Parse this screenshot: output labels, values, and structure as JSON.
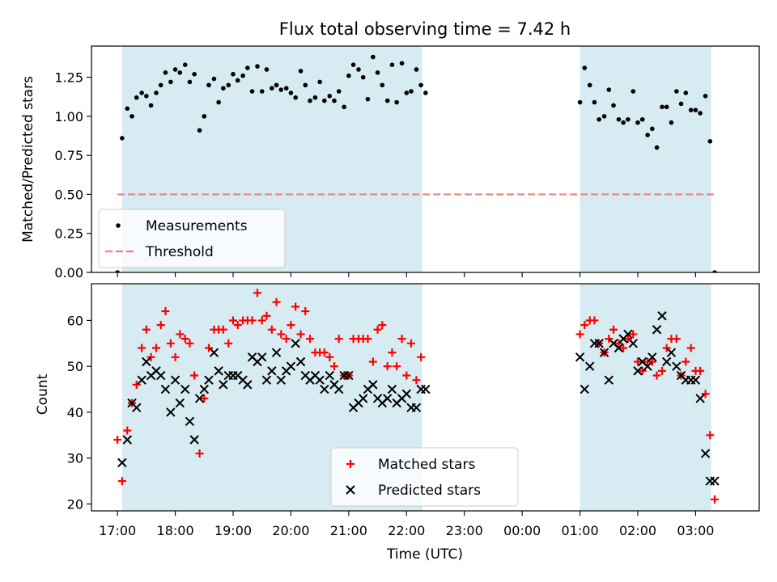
{
  "chart_data": [
    {
      "type": "scatter",
      "title": "Flux total observing time = 7.42 h",
      "ylabel": "Matched/Predicted stars",
      "xlabel": "",
      "ylim": [
        0,
        1.45
      ],
      "yticks": [
        "0.00",
        "0.25",
        "0.50",
        "0.75",
        "1.00",
        "1.25"
      ],
      "ytick_values": [
        0,
        0.25,
        0.5,
        0.75,
        1.0,
        1.25
      ],
      "legend_position": "lower-left",
      "shaded_periods_hours": [
        [
          17.08,
          22.27
        ],
        [
          25.0,
          27.27
        ]
      ],
      "series": [
        {
          "name": "Measurements",
          "color": "#000000",
          "marker": "dot",
          "x_hours": [
            17.0,
            17.08,
            17.17,
            17.25,
            17.33,
            17.42,
            17.5,
            17.58,
            17.67,
            17.75,
            17.83,
            17.92,
            18.0,
            18.08,
            18.17,
            18.25,
            18.33,
            18.42,
            18.5,
            18.58,
            18.67,
            18.75,
            18.83,
            18.92,
            19.0,
            19.08,
            19.17,
            19.25,
            19.33,
            19.42,
            19.5,
            19.58,
            19.67,
            19.75,
            19.83,
            19.92,
            20.0,
            20.08,
            20.17,
            20.25,
            20.33,
            20.42,
            20.5,
            20.58,
            20.67,
            20.75,
            20.83,
            20.92,
            21.0,
            21.08,
            21.17,
            21.25,
            21.33,
            21.42,
            21.5,
            21.58,
            21.67,
            21.75,
            21.83,
            21.92,
            22.0,
            22.08,
            22.17,
            22.25,
            22.33,
            25.0,
            25.08,
            25.17,
            25.25,
            25.33,
            25.42,
            25.5,
            25.58,
            25.67,
            25.75,
            25.83,
            25.92,
            26.0,
            26.08,
            26.17,
            26.25,
            26.33,
            26.42,
            26.5,
            26.58,
            26.67,
            26.75,
            26.83,
            26.92,
            27.0,
            27.08,
            27.17,
            27.25,
            27.33
          ],
          "y": [
            0.0,
            0.86,
            1.05,
            1.0,
            1.12,
            1.15,
            1.13,
            1.07,
            1.15,
            1.2,
            1.28,
            1.22,
            1.3,
            1.28,
            1.33,
            1.22,
            1.27,
            0.91,
            1.0,
            1.2,
            1.24,
            1.09,
            1.18,
            1.2,
            1.27,
            1.23,
            1.26,
            1.31,
            1.16,
            1.32,
            1.16,
            1.3,
            1.18,
            1.2,
            1.17,
            1.18,
            1.15,
            1.12,
            1.29,
            1.2,
            1.1,
            1.12,
            1.22,
            1.1,
            1.13,
            1.1,
            1.16,
            1.06,
            1.26,
            1.33,
            1.3,
            1.25,
            1.11,
            1.38,
            1.28,
            1.2,
            1.1,
            1.33,
            1.09,
            1.34,
            1.15,
            1.16,
            1.3,
            1.2,
            1.15,
            1.09,
            1.31,
            1.2,
            1.09,
            0.98,
            1.0,
            1.17,
            1.07,
            0.98,
            0.96,
            0.98,
            1.16,
            0.96,
            0.98,
            0.88,
            0.92,
            0.8,
            1.06,
            1.06,
            0.96,
            1.16,
            1.08,
            1.15,
            1.04,
            1.04,
            1.02,
            1.13,
            0.84,
            0.0
          ]
        },
        {
          "name": "Threshold",
          "color": "#f08080",
          "style": "dashed",
          "x_hours": [
            17.0,
            27.35
          ],
          "y": [
            0.5,
            0.5
          ]
        }
      ]
    },
    {
      "type": "scatter",
      "title": "",
      "ylabel": "Count",
      "xlabel": "Time (UTC)",
      "ylim": [
        18.5,
        68
      ],
      "yticks": [
        "20",
        "30",
        "40",
        "50",
        "60"
      ],
      "ytick_values": [
        20,
        30,
        40,
        50,
        60
      ],
      "xlim_hours": [
        16.55,
        28.1
      ],
      "xtick_hours": [
        17,
        18,
        19,
        20,
        21,
        22,
        23,
        24,
        25,
        26,
        27
      ],
      "xticks": [
        "17:00",
        "18:00",
        "19:00",
        "20:00",
        "21:00",
        "22:00",
        "23:00",
        "00:00",
        "01:00",
        "02:00",
        "03:00"
      ],
      "legend_position": "bottom-center",
      "shaded_periods_hours": [
        [
          17.08,
          22.27
        ],
        [
          25.0,
          27.27
        ]
      ],
      "series": [
        {
          "name": "Matched stars",
          "color": "#ff0000",
          "marker": "plus",
          "x_hours": [
            17.0,
            17.08,
            17.17,
            17.25,
            17.33,
            17.42,
            17.5,
            17.58,
            17.67,
            17.75,
            17.83,
            17.92,
            18.0,
            18.08,
            18.17,
            18.25,
            18.33,
            18.42,
            18.5,
            18.58,
            18.67,
            18.75,
            18.83,
            18.92,
            19.0,
            19.08,
            19.17,
            19.25,
            19.33,
            19.42,
            19.5,
            19.58,
            19.67,
            19.75,
            19.83,
            19.92,
            20.0,
            20.08,
            20.17,
            20.25,
            20.33,
            20.42,
            20.5,
            20.58,
            20.67,
            20.75,
            20.83,
            20.92,
            21.0,
            21.08,
            21.17,
            21.25,
            21.33,
            21.42,
            21.5,
            21.58,
            21.67,
            21.75,
            21.83,
            21.92,
            22.0,
            22.08,
            22.17,
            22.25,
            25.0,
            25.08,
            25.17,
            25.25,
            25.33,
            25.42,
            25.5,
            25.58,
            25.67,
            25.75,
            25.83,
            25.92,
            26.0,
            26.08,
            26.17,
            26.25,
            26.33,
            26.42,
            26.5,
            26.58,
            26.67,
            26.75,
            26.83,
            26.92,
            27.0,
            27.08,
            27.17,
            27.25,
            27.33
          ],
          "y": [
            34,
            25,
            36,
            42,
            46,
            54,
            58,
            52,
            54,
            59,
            62,
            55,
            52,
            57,
            56,
            55,
            48,
            31,
            43,
            54,
            58,
            58,
            58,
            55,
            60,
            59,
            60,
            60,
            60,
            66,
            60,
            61,
            58,
            64,
            57,
            56,
            59,
            63,
            57,
            62,
            56,
            53,
            53,
            53,
            52,
            50,
            56,
            48,
            48,
            56,
            56,
            56,
            56,
            51,
            58,
            59,
            50,
            53,
            50,
            56,
            48,
            55,
            47,
            52,
            57,
            59,
            60,
            60,
            55,
            53,
            56,
            58,
            55,
            54,
            56,
            57,
            51,
            49,
            51,
            51,
            48,
            49,
            54,
            56,
            56,
            48,
            51,
            54,
            49,
            49,
            44,
            35,
            21
          ]
        },
        {
          "name": "Predicted stars",
          "color": "#000000",
          "marker": "x",
          "x_hours": [
            17.08,
            17.17,
            17.25,
            17.33,
            17.42,
            17.5,
            17.58,
            17.67,
            17.75,
            17.83,
            17.92,
            18.0,
            18.08,
            18.17,
            18.25,
            18.33,
            18.42,
            18.5,
            18.58,
            18.67,
            18.75,
            18.83,
            18.92,
            19.0,
            19.08,
            19.17,
            19.25,
            19.33,
            19.42,
            19.5,
            19.58,
            19.67,
            19.75,
            19.83,
            19.92,
            20.0,
            20.08,
            20.17,
            20.25,
            20.33,
            20.42,
            20.5,
            20.58,
            20.67,
            20.75,
            20.83,
            20.92,
            21.0,
            21.08,
            21.17,
            21.25,
            21.33,
            21.42,
            21.5,
            21.58,
            21.67,
            21.75,
            21.83,
            21.92,
            22.0,
            22.08,
            22.17,
            22.25,
            22.33,
            25.0,
            25.08,
            25.17,
            25.25,
            25.33,
            25.42,
            25.5,
            25.58,
            25.67,
            25.75,
            25.83,
            25.92,
            26.0,
            26.08,
            26.17,
            26.25,
            26.33,
            26.42,
            26.5,
            26.58,
            26.67,
            26.75,
            26.83,
            26.92,
            27.0,
            27.08,
            27.17,
            27.25,
            27.33
          ],
          "y": [
            29,
            34,
            42,
            41,
            47,
            51,
            48,
            49,
            48,
            45,
            40,
            47,
            42,
            45,
            38,
            34,
            43,
            45,
            47,
            53,
            49,
            46,
            48,
            48,
            48,
            47,
            46,
            52,
            51,
            52,
            47,
            49,
            53,
            47,
            49,
            50,
            55,
            51,
            48,
            47,
            48,
            47,
            45,
            48,
            46,
            45,
            48,
            48,
            41,
            42,
            43,
            45,
            46,
            43,
            42,
            43,
            45,
            42,
            43,
            44,
            41,
            41,
            45,
            45,
            52,
            45,
            50,
            55,
            55,
            53,
            47,
            55,
            54,
            56,
            57,
            55,
            49,
            51,
            50,
            52,
            58,
            61,
            51,
            53,
            50,
            48,
            47,
            47,
            47,
            43,
            31,
            25,
            25
          ]
        }
      ]
    }
  ]
}
